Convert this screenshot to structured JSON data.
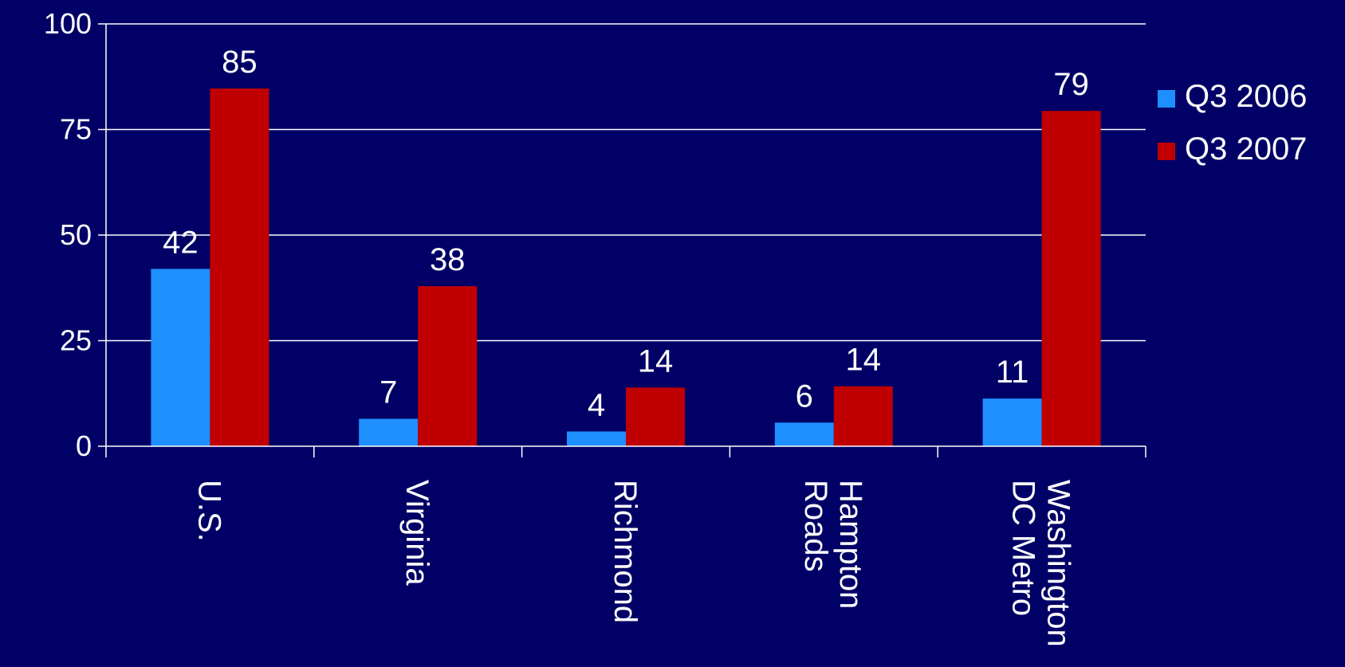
{
  "chart_data": {
    "type": "bar",
    "title": "",
    "xlabel": "",
    "ylabel": "",
    "ylim": [
      0,
      100
    ],
    "yticks": [
      0,
      25,
      50,
      75,
      100
    ],
    "grid": true,
    "legend_position": "right",
    "categories": [
      [
        "U.S."
      ],
      [
        "Virginia"
      ],
      [
        "Richmond"
      ],
      [
        "Hampton",
        "Roads"
      ],
      [
        "Washington",
        "DC Metro"
      ]
    ],
    "series": [
      {
        "name": "Q3 2006",
        "color": "#1e8fff",
        "values": [
          42,
          6.5,
          3.5,
          5.6,
          11.3
        ],
        "labels": [
          "42",
          "7",
          "4",
          "6",
          "11"
        ]
      },
      {
        "name": "Q3 2007",
        "color": "#c00000",
        "values": [
          84.7,
          37.9,
          13.9,
          14.2,
          79.4
        ],
        "labels": [
          "85",
          "38",
          "14",
          "14",
          "79"
        ]
      }
    ]
  }
}
